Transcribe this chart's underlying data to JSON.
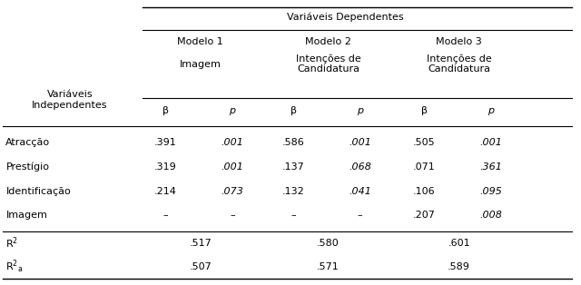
{
  "title": "Variáveis Dependentes",
  "col_header_row1": [
    "Modelo 1",
    "Modelo 2",
    "Modelo 3"
  ],
  "col_header_row2": [
    "Imagem",
    "Intenções de\nCandidatura",
    "Intenções de\nCandidatura"
  ],
  "col_subheader_beta": "β",
  "col_subheader_p": "p",
  "row_label_header": "Variáveis\nIndependentes",
  "rows": [
    {
      "label": "Atracção",
      "m1b": ".391",
      "m1p": ".001",
      "m2b": ".586",
      "m2p": ".001",
      "m3b": ".505",
      "m3p": ".001"
    },
    {
      "label": "Prestígio",
      "m1b": ".319",
      "m1p": ".001",
      "m2b": ".137",
      "m2p": ".068",
      "m3b": ".071",
      "m3p": ".361"
    },
    {
      "label": "Identificação",
      "m1b": ".214",
      "m1p": ".073",
      "m2b": ".132",
      "m2p": ".041",
      "m3b": ".106",
      "m3p": ".095"
    },
    {
      "label": "Imagem",
      "m1b": "–",
      "m1p": "–",
      "m2b": "–",
      "m2p": "–",
      "m3b": ".207",
      "m3p": ".008"
    }
  ],
  "r2_row": [
    ".517",
    ".580",
    ".601"
  ],
  "r2a_row": [
    ".507",
    ".571",
    ".589"
  ],
  "bg_color": "#ffffff",
  "text_color": "#000000",
  "font_size": 8.0
}
